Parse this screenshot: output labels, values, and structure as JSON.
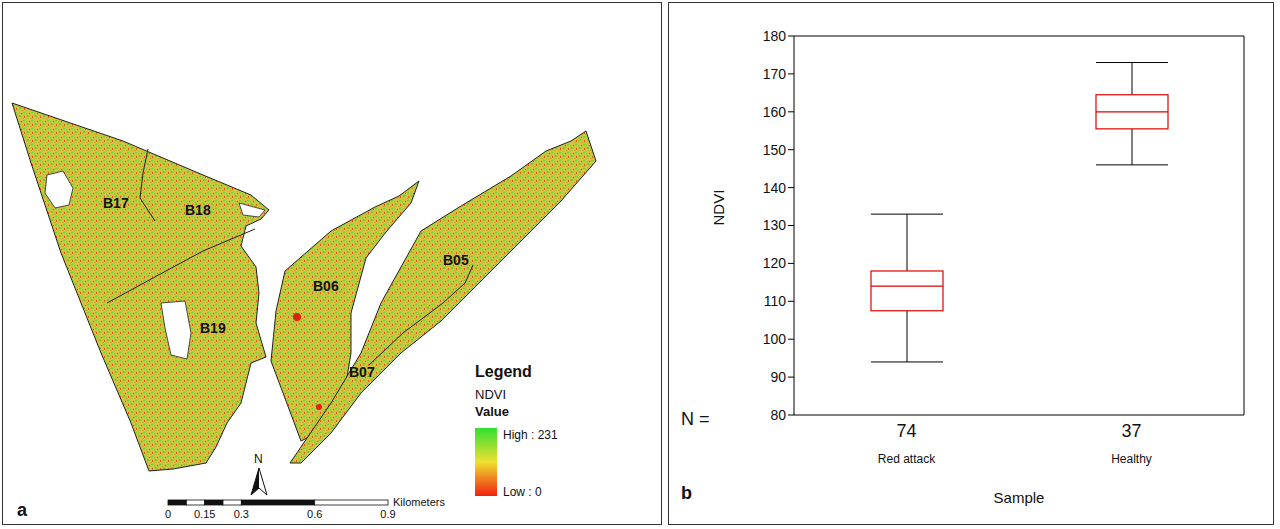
{
  "map": {
    "panel": "a",
    "labels": [
      "B17",
      "B18",
      "B19",
      "B06",
      "B05",
      "B07"
    ],
    "legend_title": "Legend",
    "field": "NDVI",
    "value_label": "Value",
    "high": "High : 231",
    "low": "Low : 0",
    "north": "N",
    "scale_unit": "Kilometers",
    "scale_ticks": [
      0,
      0.15,
      0.3,
      0.6,
      0.9
    ]
  },
  "chart_data": {
    "type": "box",
    "panel": "b",
    "x_label": "Sample",
    "y_label": "NDVI",
    "categories": [
      "Red attack",
      "Healthy"
    ],
    "n_label": "N =",
    "n": [
      74,
      37
    ],
    "min": [
      94,
      146
    ],
    "q1": [
      107.5,
      155.5
    ],
    "median": [
      114,
      160
    ],
    "q3": [
      118,
      164.5
    ],
    "max": [
      133,
      173
    ],
    "color": "#e00000",
    "ylim": [
      80,
      180
    ],
    "yticks": [
      80,
      90,
      100,
      110,
      120,
      130,
      140,
      150,
      160,
      170,
      180
    ],
    "grid": false
  }
}
